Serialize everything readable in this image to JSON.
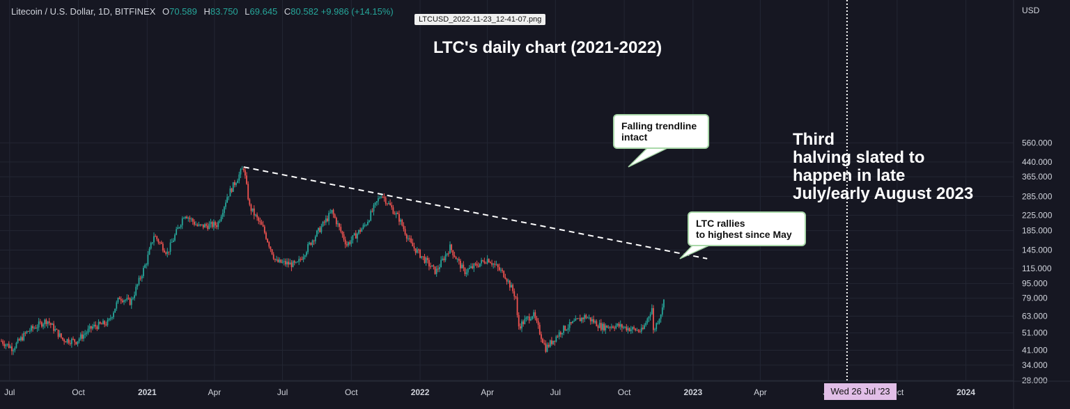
{
  "header": {
    "symbol": "Litecoin / U.S. Dollar, 1D, BITFINEX",
    "o_label": "O",
    "o_value": "70.589",
    "h_label": "H",
    "h_value": "83.750",
    "l_label": "L",
    "l_value": "69.645",
    "c_label": "C",
    "c_value": "80.582",
    "change": "+9.986 (+14.15%)"
  },
  "file_label": "LTCUSD_2022-11-23_12-41-07.png",
  "annotations": {
    "trendline_callout": [
      "Falling trendline",
      "intact"
    ],
    "rally_callout": [
      "LTC rallies",
      "to highest since May"
    ],
    "halving_note": [
      "Third",
      "halving slated to",
      "happen in late",
      "July/early August 2023"
    ],
    "date_marker": "Wed 26 Jul '23"
  },
  "colors": {
    "background": "#161722",
    "up": "#26a69a",
    "down": "#ef5350",
    "grid": "#232633",
    "text": "#d1d4dc",
    "marker": "#e1bee7"
  },
  "chart_data": {
    "type": "candlestick",
    "title": "LTC's daily chart (2021-2022)",
    "y_axis": {
      "unit": "USD",
      "scale": "log",
      "ticks": [
        "560.000",
        "440.000",
        "365.000",
        "285.000",
        "225.000",
        "185.000",
        "145.000",
        "115.000",
        "95.000",
        "79.000",
        "63.000",
        "51.000",
        "41.000",
        "34.000",
        "28.000"
      ],
      "range": [
        28,
        600
      ]
    },
    "x_axis": {
      "ticks": [
        "Jul",
        "Oct",
        "2021",
        "Apr",
        "Jul",
        "Oct",
        "2022",
        "Apr",
        "Jul",
        "Oct",
        "2023",
        "Apr",
        "Jul",
        "Oct",
        "2024"
      ],
      "range": [
        "2020-06-20",
        "2024-03-15"
      ]
    },
    "grid": true,
    "price_path": [
      [
        "2020-06-20",
        46
      ],
      [
        "2020-07-05",
        42
      ],
      [
        "2020-07-25",
        52
      ],
      [
        "2020-08-20",
        60
      ],
      [
        "2020-09-10",
        47
      ],
      [
        "2020-09-28",
        46
      ],
      [
        "2020-10-20",
        55
      ],
      [
        "2020-11-10",
        58
      ],
      [
        "2020-11-25",
        80
      ],
      [
        "2020-12-10",
        75
      ],
      [
        "2020-12-31",
        125
      ],
      [
        "2021-01-10",
        175
      ],
      [
        "2021-01-28",
        140
      ],
      [
        "2021-02-20",
        230
      ],
      [
        "2021-03-10",
        195
      ],
      [
        "2021-04-05",
        200
      ],
      [
        "2021-04-18",
        285
      ],
      [
        "2021-05-05",
        380
      ],
      [
        "2021-05-10",
        410
      ],
      [
        "2021-05-18",
        250
      ],
      [
        "2021-06-05",
        190
      ],
      [
        "2021-06-22",
        125
      ],
      [
        "2021-07-20",
        120
      ],
      [
        "2021-08-10",
        165
      ],
      [
        "2021-09-05",
        235
      ],
      [
        "2021-09-25",
        155
      ],
      [
        "2021-10-20",
        200
      ],
      [
        "2021-11-10",
        295
      ],
      [
        "2021-12-04",
        215
      ],
      [
        "2021-12-20",
        155
      ],
      [
        "2022-01-22",
        110
      ],
      [
        "2022-02-10",
        150
      ],
      [
        "2022-03-01",
        110
      ],
      [
        "2022-04-02",
        130
      ],
      [
        "2022-04-25",
        105
      ],
      [
        "2022-05-09",
        80
      ],
      [
        "2022-05-12",
        55
      ],
      [
        "2022-06-01",
        65
      ],
      [
        "2022-06-18",
        42
      ],
      [
        "2022-07-10",
        53
      ],
      [
        "2022-08-10",
        63
      ],
      [
        "2022-09-01",
        55
      ],
      [
        "2022-09-20",
        56
      ],
      [
        "2022-10-25",
        52
      ],
      [
        "2022-11-07",
        70
      ],
      [
        "2022-11-09",
        52
      ],
      [
        "2022-11-21",
        69
      ],
      [
        "2022-11-23",
        81
      ]
    ],
    "trendline": {
      "from": [
        "2021-05-10",
        413
      ],
      "to": [
        "2023-01-20",
        130
      ]
    }
  }
}
